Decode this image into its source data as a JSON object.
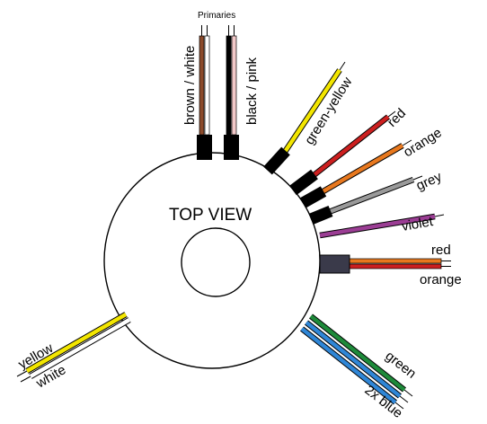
{
  "diagram": {
    "view_label": "TOP VIEW",
    "primaries_label": "Primaries",
    "colors": {
      "outline": "#000000",
      "brown": "#8b4a2b",
      "pink": "#f2c9c9",
      "yellow": "#f3e600",
      "red": "#cc1f1f",
      "orange": "#e8781e",
      "grey": "#9a9a9a",
      "violet": "#9b3d94",
      "green": "#1e8a3a",
      "blue": "#2f86d6",
      "connector": "#3a3a4a",
      "white": "#ffffff"
    },
    "primaries": [
      {
        "label": "brown / white",
        "wire_colors": [
          "brown",
          "white"
        ]
      },
      {
        "label": "black / pink",
        "wire_colors": [
          "black",
          "pink"
        ]
      }
    ],
    "leads": [
      {
        "id": "green-yellow",
        "label": "green-yellow",
        "wire_colors": [
          "yellow",
          "green"
        ]
      },
      {
        "id": "red",
        "label": "red",
        "wire_colors": [
          "red"
        ]
      },
      {
        "id": "orange",
        "label": "orange",
        "wire_colors": [
          "orange"
        ]
      },
      {
        "id": "grey",
        "label": "grey",
        "wire_colors": [
          "grey"
        ]
      },
      {
        "id": "violet",
        "label": "violet",
        "wire_colors": [
          "violet"
        ]
      },
      {
        "id": "red-orange",
        "label_top": "red",
        "label_bottom": "orange",
        "wire_colors": [
          "orange",
          "red"
        ]
      },
      {
        "id": "green-blue",
        "label_top": "green",
        "label_bottom": "2x blue",
        "wire_colors": [
          "green",
          "blue",
          "blue"
        ]
      },
      {
        "id": "yellow-white",
        "label_top": "yellow",
        "label_bottom": "white",
        "wire_colors": [
          "yellow",
          "white"
        ]
      }
    ]
  }
}
